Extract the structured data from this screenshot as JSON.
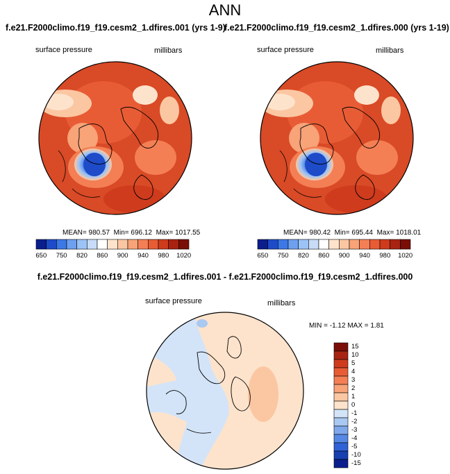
{
  "title": "ANN",
  "panels": [
    {
      "case_title": "f.e21.F2000climo.f19_f19.cesm2_1.dfires.001 (yrs 1-9)",
      "variable": "surface pressure",
      "units": "millibars",
      "mean_label": "MEAN=",
      "mean": "980.57",
      "min_label": "Min=",
      "min": "696.12",
      "max_label": "Max=",
      "max": "1017.55"
    },
    {
      "case_title": "f.e21.F2000climo.f19_f19.cesm2_1.dfires.000 (yrs 1-19)",
      "variable": "surface pressure",
      "units": "millibars",
      "mean_label": "MEAN=",
      "mean": "980.42",
      "min_label": "Min=",
      "min": "695.44",
      "max_label": "Max=",
      "max": "1018.01"
    }
  ],
  "colorbar": {
    "colors": [
      "#0a1e8c",
      "#1e4bc8",
      "#3c78e6",
      "#6ea0f0",
      "#9cc3f5",
      "#c8dcf8",
      "#ffffff",
      "#fde3cc",
      "#fbc7a2",
      "#f8a378",
      "#f47f55",
      "#e85c35",
      "#cf3b1d",
      "#a82312",
      "#7a0e07"
    ],
    "tick_labels": [
      "650",
      "750",
      "820",
      "860",
      "900",
      "940",
      "980",
      "1020"
    ]
  },
  "diff": {
    "title": "f.e21.F2000climo.f19_f19.cesm2_1.dfires.001 - f.e21.F2000climo.f19_f19.cesm2_1.dfires.000",
    "variable": "surface pressure",
    "units": "millibars",
    "min_label": "MIN =",
    "min": "-1.12",
    "max_label": "MAX =",
    "max": "1.81",
    "colorbar": {
      "colors": [
        "#7a0e07",
        "#a82312",
        "#cf3b1d",
        "#e85c35",
        "#f47f55",
        "#f8a378",
        "#fbc7a2",
        "#fde3cc",
        "#d3e4f8",
        "#a9c8f2",
        "#7fa8ec",
        "#5588e4",
        "#2f62d6",
        "#1740b0",
        "#0a1e8c"
      ],
      "tick_labels": [
        "15",
        "10",
        "5",
        "4",
        "3",
        "2",
        "1",
        "0",
        "-1",
        "-2",
        "-3",
        "-4",
        "-5",
        "-10",
        "-15"
      ]
    }
  }
}
